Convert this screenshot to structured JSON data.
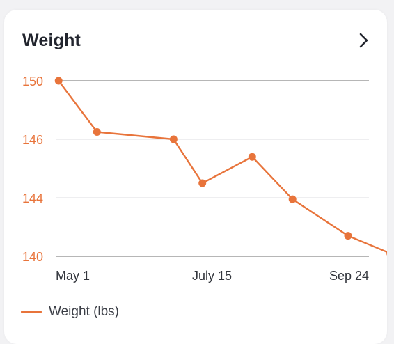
{
  "card": {
    "title": "Weight"
  },
  "icons": {
    "more": "chevron-right-icon"
  },
  "colors": {
    "series": "#e8743b",
    "axis_text": "#e8743b",
    "grid": "#e4e4e6",
    "baseline": "#8a8a8a",
    "x_text": "#33363d"
  },
  "chart_data": {
    "type": "line",
    "title": "Weight",
    "xlabel": "",
    "ylabel": "",
    "x": [
      "2024-04-26",
      "2024-05-16",
      "2024-06-25",
      "2024-07-10",
      "2024-08-05",
      "2024-08-26",
      "2024-09-24",
      "2024-10-16"
    ],
    "x_ticks": [
      {
        "date": "2024-05-01",
        "label": "May 1"
      },
      {
        "date": "2024-07-15",
        "label": "July 15"
      },
      {
        "date": "2024-09-24",
        "label": "Sep 24"
      }
    ],
    "y_ticks": [
      "150",
      "146",
      "144",
      "140"
    ],
    "series": [
      {
        "name": "Weight (lbs)",
        "values": [
          150,
          146.5,
          146,
          144.5,
          145.4,
          143.9,
          141.4,
          140.2
        ]
      }
    ],
    "grid": true,
    "legend": "bottom-left"
  }
}
